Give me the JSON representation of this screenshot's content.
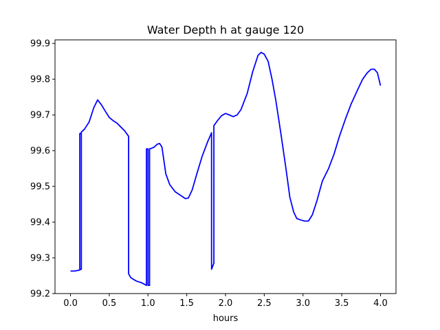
{
  "chart_data": {
    "type": "line",
    "title": "Water Depth h at gauge 120",
    "xlabel": "hours",
    "ylabel": "",
    "xlim": [
      -0.2,
      4.2
    ],
    "ylim": [
      99.2,
      99.91
    ],
    "xticks": [
      0.0,
      0.5,
      1.0,
      1.5,
      2.0,
      2.5,
      3.0,
      3.5,
      4.0
    ],
    "xtick_labels": [
      "0.0",
      "0.5",
      "1.0",
      "1.5",
      "2.0",
      "2.5",
      "3.0",
      "3.5",
      "4.0"
    ],
    "yticks": [
      99.2,
      99.3,
      99.4,
      99.5,
      99.6,
      99.7,
      99.8,
      99.9
    ],
    "ytick_labels": [
      "99.2",
      "99.3",
      "99.4",
      "99.5",
      "99.6",
      "99.7",
      "99.8",
      "99.9"
    ],
    "grid": false,
    "legend": "none",
    "series": [
      {
        "color": "#0000ff",
        "x": [
          0.0,
          0.05,
          0.1,
          0.14,
          0.14,
          0.12,
          0.12,
          0.14,
          0.14,
          0.18,
          0.24,
          0.3,
          0.35,
          0.4,
          0.45,
          0.5,
          0.55,
          0.6,
          0.65,
          0.7,
          0.75,
          0.75,
          0.78,
          0.85,
          0.92,
          0.98,
          0.98,
          1.0,
          1.0,
          1.02,
          1.02,
          1.04,
          1.08,
          1.12,
          1.15,
          1.18,
          1.2,
          1.23,
          1.28,
          1.35,
          1.42,
          1.48,
          1.52,
          1.57,
          1.63,
          1.7,
          1.77,
          1.82,
          1.82,
          1.85,
          1.85,
          1.9,
          1.95,
          2.0,
          2.05,
          2.1,
          2.15,
          2.2,
          2.28,
          2.35,
          2.42,
          2.46,
          2.5,
          2.55,
          2.6,
          2.65,
          2.72,
          2.78,
          2.83,
          2.88,
          2.92,
          2.97,
          3.02,
          3.07,
          3.12,
          3.18,
          3.25,
          3.33,
          3.4,
          3.47,
          3.55,
          3.62,
          3.7,
          3.77,
          3.83,
          3.88,
          3.92,
          3.96,
          4.0
        ],
        "y": [
          99.263,
          99.263,
          99.265,
          99.268,
          99.648,
          99.648,
          99.268,
          99.268,
          99.652,
          99.66,
          99.68,
          99.72,
          99.742,
          99.728,
          99.71,
          99.693,
          99.684,
          99.677,
          99.666,
          99.655,
          99.64,
          99.255,
          99.244,
          99.235,
          99.23,
          99.223,
          99.605,
          99.605,
          99.223,
          99.223,
          99.605,
          99.606,
          99.61,
          99.618,
          99.62,
          99.61,
          99.58,
          99.535,
          99.505,
          99.485,
          99.475,
          99.466,
          99.467,
          99.49,
          99.535,
          99.585,
          99.625,
          99.65,
          99.268,
          99.285,
          99.67,
          99.685,
          99.698,
          99.704,
          99.7,
          99.695,
          99.7,
          99.715,
          99.76,
          99.82,
          99.867,
          99.875,
          99.87,
          99.85,
          99.8,
          99.74,
          99.64,
          99.55,
          99.47,
          99.428,
          99.41,
          99.406,
          99.403,
          99.403,
          99.42,
          99.46,
          99.515,
          99.55,
          99.59,
          99.64,
          99.69,
          99.73,
          99.768,
          99.8,
          99.818,
          99.828,
          99.828,
          99.818,
          99.782
        ]
      }
    ]
  }
}
